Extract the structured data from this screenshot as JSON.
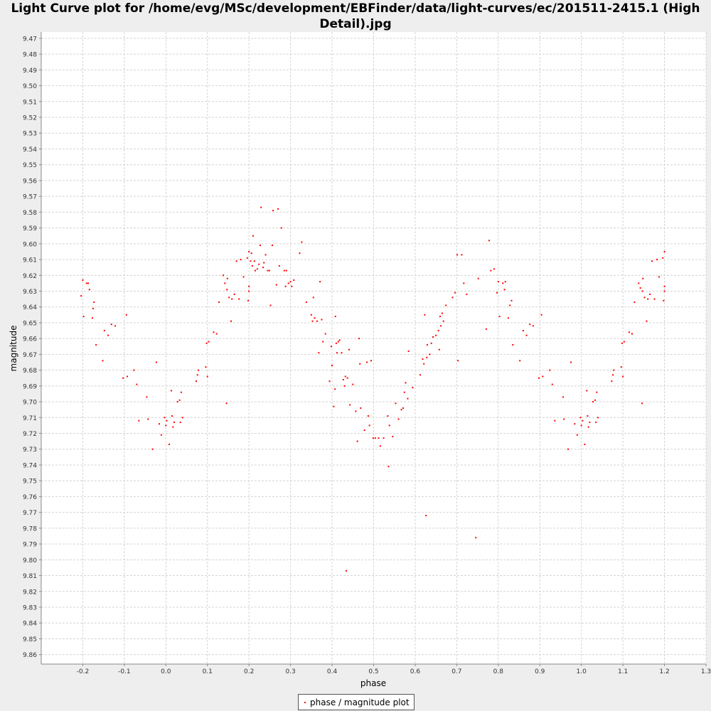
{
  "title_line1": "Light Curve plot for /home/evg/MSc/development/EBFinder/data/light-curves/ec/201511-2415.1 (High",
  "title_line2": "Detail).jpg",
  "chart_data": {
    "type": "scatter",
    "title": "Light Curve plot for /home/evg/MSc/development/EBFinder/data/light-curves/ec/201511-2415.1 (High Detail).jpg",
    "xlabel": "phase",
    "ylabel": "magnitude",
    "xlim": [
      -0.3,
      1.3
    ],
    "ylim": [
      9.866,
      9.466
    ],
    "y_inverted": true,
    "grid": true,
    "legend_position": "bottom-center",
    "x_ticks": [
      "-0.2",
      "-0.1",
      "0.0",
      "0.1",
      "0.2",
      "0.3",
      "0.4",
      "0.5",
      "0.6",
      "0.7",
      "0.8",
      "0.9",
      "1.0",
      "1.1",
      "1.2",
      "1.3"
    ],
    "y_ticks": [
      "9.47",
      "9.48",
      "9.49",
      "9.50",
      "9.51",
      "9.52",
      "9.53",
      "9.54",
      "9.55",
      "9.56",
      "9.57",
      "9.58",
      "9.59",
      "9.60",
      "9.61",
      "9.62",
      "9.63",
      "9.64",
      "9.65",
      "9.66",
      "9.67",
      "9.68",
      "9.69",
      "9.70",
      "9.71",
      "9.72",
      "9.73",
      "9.74",
      "9.75",
      "9.76",
      "9.77",
      "9.78",
      "9.79",
      "9.80",
      "9.81",
      "9.82",
      "9.83",
      "9.84",
      "9.85",
      "9.86"
    ],
    "series": [
      {
        "name": "phase / magnitude plot",
        "color": "#ff0000",
        "points": [
          [
            -0.204,
            9.633
          ],
          [
            -0.2,
            9.623
          ],
          [
            -0.198,
            9.646
          ],
          [
            -0.191,
            9.625
          ],
          [
            -0.187,
            9.625
          ],
          [
            -0.184,
            9.629
          ],
          [
            -0.177,
            9.647
          ],
          [
            -0.175,
            9.641
          ],
          [
            -0.173,
            9.637
          ],
          [
            -0.168,
            9.664
          ],
          [
            -0.152,
            9.674
          ],
          [
            -0.148,
            9.655
          ],
          [
            -0.139,
            9.658
          ],
          [
            -0.131,
            9.651
          ],
          [
            -0.122,
            9.652
          ],
          [
            -0.103,
            9.685
          ],
          [
            -0.095,
            9.645
          ],
          [
            -0.093,
            9.684
          ],
          [
            -0.077,
            9.68
          ],
          [
            -0.07,
            9.689
          ],
          [
            -0.065,
            9.712
          ],
          [
            -0.046,
            9.697
          ],
          [
            -0.043,
            9.711
          ],
          [
            -0.032,
            9.73
          ],
          [
            -0.023,
            9.675
          ],
          [
            -0.016,
            9.714
          ],
          [
            -0.011,
            9.721
          ],
          [
            -0.003,
            9.71
          ],
          [
            0.0,
            9.715
          ],
          [
            0.002,
            9.712
          ],
          [
            0.008,
            9.727
          ],
          [
            0.013,
            9.693
          ],
          [
            0.015,
            9.709
          ],
          [
            0.017,
            9.716
          ],
          [
            0.02,
            9.713
          ],
          [
            0.028,
            9.7
          ],
          [
            0.033,
            9.699
          ],
          [
            0.035,
            9.713
          ],
          [
            0.037,
            9.694
          ],
          [
            0.04,
            9.71
          ],
          [
            0.073,
            9.687
          ],
          [
            0.076,
            9.683
          ],
          [
            0.078,
            9.68
          ],
          [
            0.096,
            9.678
          ],
          [
            0.098,
            9.663
          ],
          [
            0.1,
            9.684
          ],
          [
            0.103,
            9.662
          ],
          [
            0.115,
            9.656
          ],
          [
            0.122,
            9.657
          ],
          [
            0.128,
            9.637
          ],
          [
            0.138,
            9.62
          ],
          [
            0.142,
            9.625
          ],
          [
            0.146,
            9.701
          ],
          [
            0.147,
            9.629
          ],
          [
            0.148,
            9.622
          ],
          [
            0.152,
            9.634
          ],
          [
            0.157,
            9.649
          ],
          [
            0.159,
            9.635
          ],
          [
            0.165,
            9.632
          ],
          [
            0.17,
            9.611
          ],
          [
            0.176,
            9.635
          ],
          [
            0.18,
            9.61
          ],
          [
            0.187,
            9.621
          ],
          [
            0.196,
            9.609
          ],
          [
            0.198,
            9.636
          ],
          [
            0.2,
            9.63
          ],
          [
            0.2,
            9.627
          ],
          [
            0.2,
            9.605
          ],
          [
            0.204,
            9.611
          ],
          [
            0.206,
            9.606
          ],
          [
            0.208,
            9.614
          ],
          [
            0.21,
            9.595
          ],
          [
            0.213,
            9.611
          ],
          [
            0.215,
            9.617
          ],
          [
            0.22,
            9.616
          ],
          [
            0.224,
            9.613
          ],
          [
            0.227,
            9.601
          ],
          [
            0.229,
            9.577
          ],
          [
            0.234,
            9.615
          ],
          [
            0.236,
            9.612
          ],
          [
            0.24,
            9.607
          ],
          [
            0.245,
            9.617
          ],
          [
            0.249,
            9.617
          ],
          [
            0.252,
            9.639
          ],
          [
            0.256,
            9.601
          ],
          [
            0.258,
            9.579
          ],
          [
            0.266,
            9.626
          ],
          [
            0.27,
            9.578
          ],
          [
            0.273,
            9.614
          ],
          [
            0.278,
            9.59
          ],
          [
            0.285,
            9.617
          ],
          [
            0.288,
            9.627
          ],
          [
            0.29,
            9.617
          ],
          [
            0.295,
            9.625
          ],
          [
            0.3,
            9.624
          ],
          [
            0.303,
            9.627
          ],
          [
            0.308,
            9.623
          ],
          [
            0.322,
            9.606
          ],
          [
            0.327,
            9.599
          ],
          [
            0.338,
            9.637
          ],
          [
            0.35,
            9.645
          ],
          [
            0.353,
            9.649
          ],
          [
            0.355,
            9.634
          ],
          [
            0.358,
            9.647
          ],
          [
            0.364,
            9.649
          ],
          [
            0.368,
            9.669
          ],
          [
            0.371,
            9.624
          ],
          [
            0.375,
            9.648
          ],
          [
            0.378,
            9.662
          ],
          [
            0.384,
            9.657
          ],
          [
            0.394,
            9.687
          ],
          [
            0.398,
            9.665
          ],
          [
            0.4,
            9.677
          ],
          [
            0.404,
            9.703
          ],
          [
            0.407,
            9.692
          ],
          [
            0.408,
            9.646
          ],
          [
            0.41,
            9.663
          ],
          [
            0.412,
            9.669
          ],
          [
            0.415,
            9.662
          ],
          [
            0.418,
            9.661
          ],
          [
            0.423,
            9.669
          ],
          [
            0.427,
            9.686
          ],
          [
            0.43,
            9.69
          ],
          [
            0.432,
            9.684
          ],
          [
            0.434,
            9.807
          ],
          [
            0.437,
            9.685
          ],
          [
            0.441,
            9.667
          ],
          [
            0.443,
            9.702
          ],
          [
            0.45,
            9.689
          ],
          [
            0.457,
            9.706
          ],
          [
            0.461,
            9.725
          ],
          [
            0.465,
            9.66
          ],
          [
            0.467,
            9.676
          ],
          [
            0.469,
            9.704
          ],
          [
            0.478,
            9.718
          ],
          [
            0.484,
            9.675
          ],
          [
            0.487,
            9.709
          ],
          [
            0.49,
            9.715
          ],
          [
            0.494,
            9.674
          ],
          [
            0.499,
            9.723
          ],
          [
            0.504,
            9.723
          ],
          [
            0.512,
            9.723
          ],
          [
            0.516,
            9.728
          ],
          [
            0.524,
            9.723
          ],
          [
            0.534,
            9.709
          ],
          [
            0.536,
            9.741
          ],
          [
            0.538,
            9.715
          ],
          [
            0.546,
            9.722
          ],
          [
            0.553,
            9.701
          ],
          [
            0.56,
            9.711
          ],
          [
            0.567,
            9.705
          ],
          [
            0.571,
            9.704
          ],
          [
            0.574,
            9.694
          ],
          [
            0.577,
            9.688
          ],
          [
            0.582,
            9.698
          ],
          [
            0.584,
            9.668
          ],
          [
            0.594,
            9.691
          ],
          [
            0.612,
            9.683
          ],
          [
            0.618,
            9.673
          ],
          [
            0.621,
            9.676
          ],
          [
            0.623,
            9.645
          ],
          [
            0.626,
            9.772
          ],
          [
            0.628,
            9.672
          ],
          [
            0.629,
            9.664
          ],
          [
            0.635,
            9.67
          ],
          [
            0.639,
            9.663
          ],
          [
            0.643,
            9.659
          ],
          [
            0.65,
            9.658
          ],
          [
            0.656,
            9.655
          ],
          [
            0.658,
            9.667
          ],
          [
            0.66,
            9.646
          ],
          [
            0.662,
            9.652
          ],
          [
            0.665,
            9.644
          ],
          [
            0.668,
            9.649
          ],
          [
            0.674,
            9.639
          ],
          [
            0.69,
            9.634
          ],
          [
            0.696,
            9.631
          ],
          [
            0.701,
            9.607
          ],
          [
            0.703,
            9.674
          ],
          [
            0.712,
            9.607
          ],
          [
            0.717,
            9.625
          ],
          [
            0.724,
            9.632
          ],
          [
            0.746,
            9.786
          ],
          [
            0.752,
            9.622
          ],
          [
            0.771,
            9.654
          ],
          [
            0.778,
            9.598
          ],
          [
            0.782,
            9.617
          ],
          [
            0.79,
            9.616
          ],
          [
            0.797,
            9.631
          ],
          [
            0.8,
            9.624
          ],
          [
            0.803,
            9.646
          ],
          [
            0.811,
            9.625
          ],
          [
            0.815,
            9.629
          ],
          [
            0.817,
            9.624
          ],
          [
            0.824,
            9.647
          ],
          [
            0.828,
            9.639
          ],
          [
            0.832,
            9.636
          ],
          [
            0.835,
            9.664
          ],
          [
            0.852,
            9.674
          ],
          [
            0.86,
            9.655
          ],
          [
            0.868,
            9.658
          ],
          [
            0.876,
            9.651
          ],
          [
            0.884,
            9.652
          ],
          [
            0.898,
            9.685
          ],
          [
            0.904,
            9.645
          ],
          [
            0.907,
            9.684
          ],
          [
            0.924,
            9.68
          ],
          [
            0.93,
            9.689
          ],
          [
            0.936,
            9.712
          ],
          [
            0.956,
            9.697
          ],
          [
            0.958,
            9.711
          ],
          [
            0.968,
            9.73
          ],
          [
            0.975,
            9.675
          ],
          [
            0.984,
            9.714
          ],
          [
            0.99,
            9.721
          ],
          [
            0.998,
            9.71
          ],
          [
            1.0,
            9.715
          ],
          [
            1.003,
            9.712
          ],
          [
            1.008,
            9.727
          ],
          [
            1.013,
            9.693
          ],
          [
            1.015,
            9.709
          ],
          [
            1.017,
            9.716
          ],
          [
            1.02,
            9.713
          ],
          [
            1.028,
            9.7
          ],
          [
            1.033,
            9.699
          ],
          [
            1.035,
            9.713
          ],
          [
            1.037,
            9.694
          ],
          [
            1.04,
            9.71
          ],
          [
            1.073,
            9.687
          ],
          [
            1.076,
            9.683
          ],
          [
            1.078,
            9.68
          ],
          [
            1.096,
            9.678
          ],
          [
            1.098,
            9.663
          ],
          [
            1.1,
            9.684
          ],
          [
            1.103,
            9.662
          ],
          [
            1.115,
            9.656
          ],
          [
            1.122,
            9.657
          ],
          [
            1.128,
            9.637
          ],
          [
            1.138,
            9.625
          ],
          [
            1.142,
            9.628
          ],
          [
            1.146,
            9.701
          ],
          [
            1.147,
            9.63
          ],
          [
            1.148,
            9.622
          ],
          [
            1.152,
            9.634
          ],
          [
            1.157,
            9.649
          ],
          [
            1.16,
            9.635
          ],
          [
            1.165,
            9.632
          ],
          [
            1.17,
            9.611
          ],
          [
            1.176,
            9.635
          ],
          [
            1.182,
            9.61
          ],
          [
            1.187,
            9.621
          ],
          [
            1.196,
            9.609
          ],
          [
            1.198,
            9.636
          ],
          [
            1.2,
            9.63
          ],
          [
            1.2,
            9.627
          ],
          [
            1.2,
            9.605
          ]
        ]
      }
    ]
  },
  "legend": {
    "label": "phase / magnitude plot"
  }
}
